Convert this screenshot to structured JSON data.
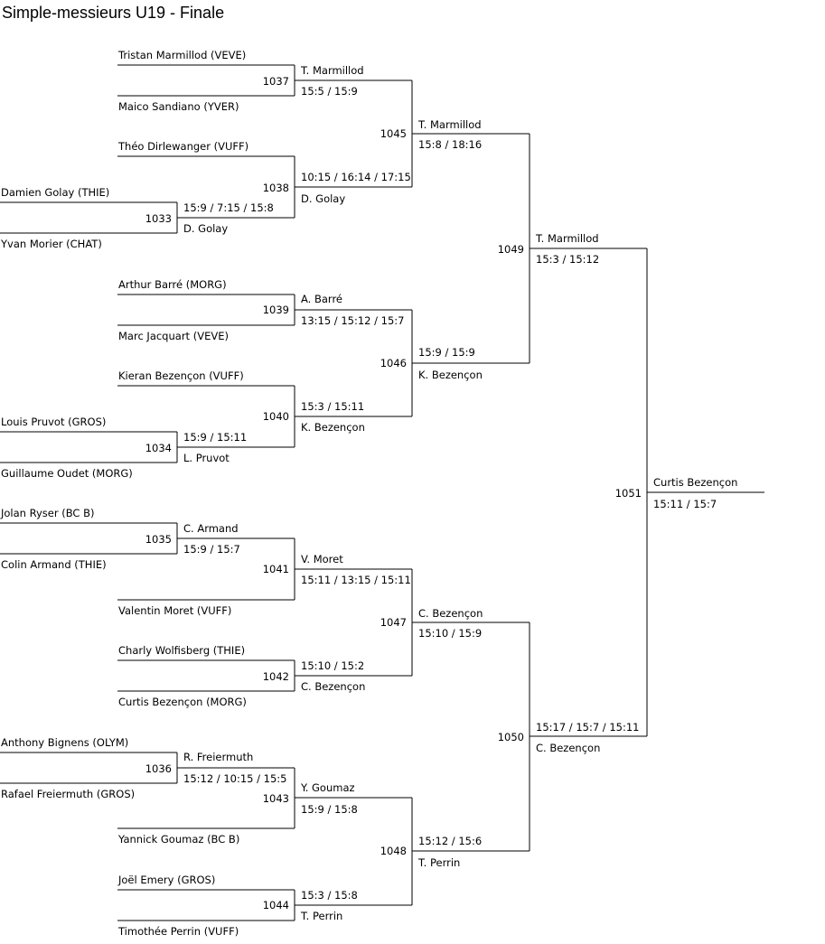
{
  "title": "Simple-messieurs U19 - Finale",
  "players": {
    "tristan": "Tristan Marmillod (VEVE)",
    "maico": "Maico Sandiano (YVER)",
    "theo": "Théo Dirlewanger (VUFF)",
    "damien": "Damien Golay (THIE)",
    "yvan": "Yvan Morier (CHAT)",
    "arthur": "Arthur Barré (MORG)",
    "marc": "Marc Jacquart (VEVE)",
    "kieran": "Kieran Bezençon (VUFF)",
    "louis": "Louis Pruvot (GROS)",
    "guillaume": "Guillaume Oudet (MORG)",
    "jolan": "Jolan Ryser (BC B)",
    "colin": "Colin Armand (THIE)",
    "valentin": "Valentin Moret (VUFF)",
    "charly": "Charly Wolfisberg (THIE)",
    "curtis": "Curtis Bezençon (MORG)",
    "anthony": "Anthony Bignens (OLYM)",
    "rafael": "Rafael Freiermuth (GROS)",
    "yannick": "Yannick Goumaz (BC B)",
    "joel": "Joël Emery (GROS)",
    "timothee": "Timothée Perrin (VUFF)"
  },
  "matches": {
    "m1033": {
      "number": "1033",
      "winner": "D. Golay",
      "score": "15:9 / 7:15 / 15:8"
    },
    "m1034": {
      "number": "1034",
      "winner": "L. Pruvot",
      "score": "15:9 / 15:11"
    },
    "m1035": {
      "number": "1035",
      "winner": "C. Armand",
      "score": "15:9 / 15:7"
    },
    "m1036": {
      "number": "1036",
      "winner": "R. Freiermuth",
      "score": "15:12 / 10:15 / 15:5"
    },
    "m1037": {
      "number": "1037",
      "winner": "T. Marmillod",
      "score": "15:5 / 15:9"
    },
    "m1038": {
      "number": "1038",
      "winner": "D. Golay",
      "score": "10:15 / 16:14 / 17:15"
    },
    "m1039": {
      "number": "1039",
      "winner": "A. Barré",
      "score": "13:15 / 15:12 / 15:7"
    },
    "m1040": {
      "number": "1040",
      "winner": "K. Bezençon",
      "score": "15:3 / 15:11"
    },
    "m1041": {
      "number": "1041",
      "winner": "V. Moret",
      "score": "15:11 / 13:15 / 15:11"
    },
    "m1042": {
      "number": "1042",
      "winner": "C. Bezençon",
      "score": "15:10 / 15:2"
    },
    "m1043": {
      "number": "1043",
      "winner": "Y. Goumaz",
      "score": "15:9 / 15:8"
    },
    "m1044": {
      "number": "1044",
      "winner": "T. Perrin",
      "score": "15:3 / 15:8"
    },
    "m1045": {
      "number": "1045",
      "winner": "T. Marmillod",
      "score": "15:8 / 18:16"
    },
    "m1046": {
      "number": "1046",
      "winner": "K. Bezençon",
      "score": "15:9 / 15:9"
    },
    "m1047": {
      "number": "1047",
      "winner": "C. Bezençon",
      "score": "15:10 / 15:9"
    },
    "m1048": {
      "number": "1048",
      "winner": "T. Perrin",
      "score": "15:12 / 15:6"
    },
    "m1049": {
      "number": "1049",
      "winner": "T. Marmillod",
      "score": "15:3 / 15:12"
    },
    "m1050": {
      "number": "1050",
      "winner": "C. Bezençon",
      "score": "15:17 / 15:7 / 15:11"
    },
    "m1051": {
      "number": "1051",
      "winner": "Curtis Bezençon",
      "score": "15:11 / 15:7"
    }
  }
}
